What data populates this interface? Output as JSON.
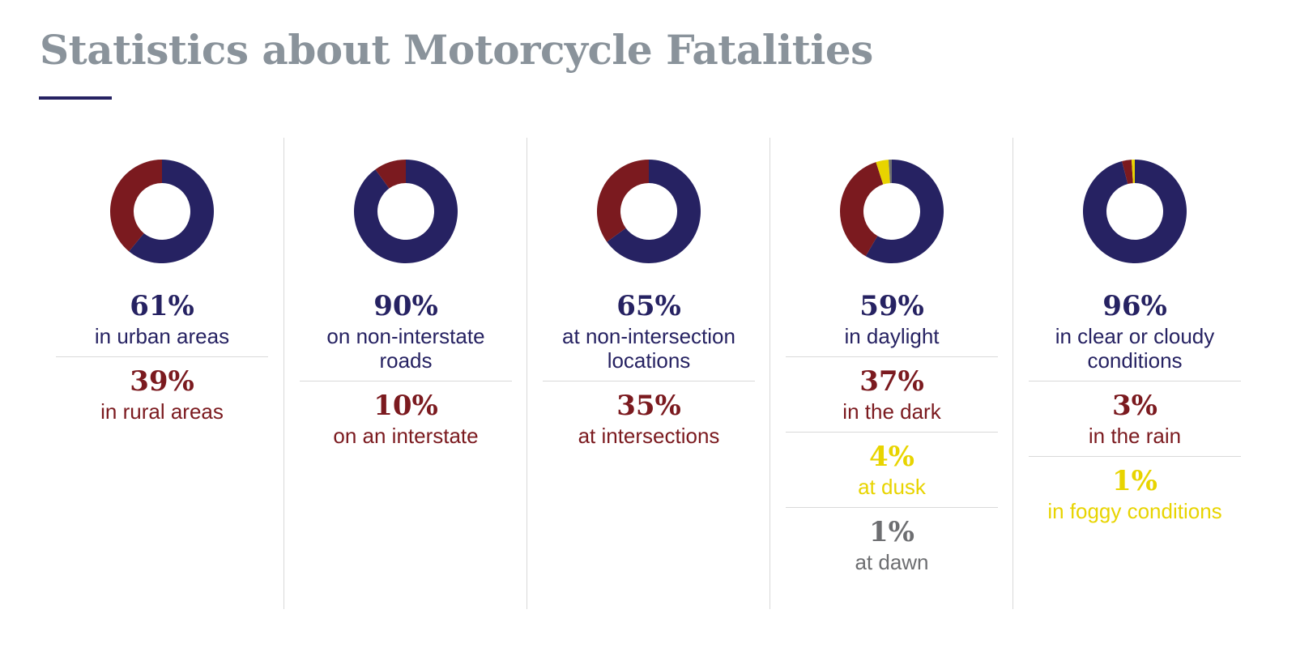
{
  "title": "Statistics about Motorcycle Fatalities",
  "chart_data": [
    {
      "type": "donut",
      "categories": [
        "in urban areas",
        "in rural areas"
      ],
      "values": [
        61,
        39
      ],
      "value_labels": [
        "61%",
        "39%"
      ],
      "colors": [
        "#262262",
        "#7b1a1f"
      ]
    },
    {
      "type": "donut",
      "categories": [
        "on non-interstate roads",
        "on an interstate"
      ],
      "values": [
        90,
        10
      ],
      "value_labels": [
        "90%",
        "10%"
      ],
      "colors": [
        "#262262",
        "#7b1a1f"
      ]
    },
    {
      "type": "donut",
      "categories": [
        "at non-intersection locations",
        "at intersections"
      ],
      "values": [
        65,
        35
      ],
      "value_labels": [
        "65%",
        "35%"
      ],
      "colors": [
        "#262262",
        "#7b1a1f"
      ]
    },
    {
      "type": "donut",
      "categories": [
        "in daylight",
        "in the dark",
        "at dusk",
        "at dawn"
      ],
      "values": [
        59,
        37,
        4,
        1
      ],
      "value_labels": [
        "59%",
        "37%",
        "4%",
        "1%"
      ],
      "colors": [
        "#262262",
        "#7b1a1f",
        "#e8d400",
        "#6d6e71"
      ]
    },
    {
      "type": "donut",
      "categories": [
        "in clear or cloudy conditions",
        "in the rain",
        "in foggy conditions"
      ],
      "values": [
        96,
        3,
        1
      ],
      "value_labels": [
        "96%",
        "3%",
        "1%"
      ],
      "colors": [
        "#262262",
        "#7b1a1f",
        "#e8d400"
      ]
    }
  ]
}
